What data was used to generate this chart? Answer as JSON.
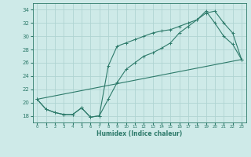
{
  "xlabel": "Humidex (Indice chaleur)",
  "ylabel": "",
  "bg_color": "#ceeae8",
  "grid_color": "#afd4d2",
  "line_color": "#2d7a6a",
  "xlim": [
    -0.5,
    23.5
  ],
  "ylim": [
    17.0,
    35.0
  ],
  "yticks": [
    18,
    20,
    22,
    24,
    26,
    28,
    30,
    32,
    34
  ],
  "xticks": [
    0,
    1,
    2,
    3,
    4,
    5,
    6,
    7,
    8,
    9,
    10,
    11,
    12,
    13,
    14,
    15,
    16,
    17,
    18,
    19,
    20,
    21,
    22,
    23
  ],
  "line1_x": [
    0,
    1,
    2,
    3,
    4,
    5,
    6,
    7,
    8,
    9,
    10,
    11,
    12,
    13,
    14,
    15,
    16,
    17,
    18,
    19,
    20,
    21,
    22,
    23
  ],
  "line1_y": [
    20.5,
    19.0,
    18.5,
    18.2,
    18.2,
    19.2,
    17.8,
    18.0,
    20.5,
    23.0,
    25.0,
    26.0,
    27.0,
    27.5,
    28.2,
    29.0,
    30.5,
    31.5,
    32.5,
    33.5,
    33.8,
    32.0,
    30.5,
    26.5
  ],
  "line2_x": [
    0,
    1,
    2,
    3,
    4,
    5,
    6,
    7,
    8,
    9,
    10,
    11,
    12,
    13,
    14,
    15,
    16,
    17,
    18,
    19,
    20,
    21,
    22,
    23
  ],
  "line2_y": [
    20.5,
    19.0,
    18.5,
    18.2,
    18.2,
    19.2,
    17.8,
    18.0,
    25.5,
    28.5,
    29.0,
    29.5,
    30.0,
    30.5,
    30.8,
    31.0,
    31.5,
    32.0,
    32.5,
    33.8,
    32.0,
    30.0,
    28.8,
    26.5
  ],
  "line3_x": [
    0,
    23
  ],
  "line3_y": [
    20.5,
    26.5
  ]
}
